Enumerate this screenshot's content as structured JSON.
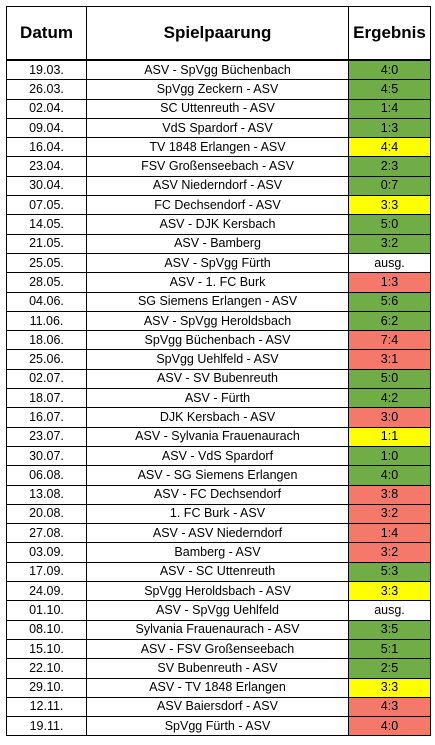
{
  "headers": {
    "date": "Datum",
    "match": "Spielpaarung",
    "result": "Ergebnis"
  },
  "colors": {
    "win": "#70ad47",
    "draw": "#ffff00",
    "loss": "#f4796b",
    "cancelled": "#ffffff"
  },
  "rows": [
    {
      "date": "19.03.",
      "match": "ASV - SpVgg Büchenbach",
      "result": "4:0",
      "outcome": "win"
    },
    {
      "date": "26.03.",
      "match": "SpVgg Zeckern - ASV",
      "result": "4:5",
      "outcome": "win"
    },
    {
      "date": "02.04.",
      "match": "SC Uttenreuth - ASV",
      "result": "1:4",
      "outcome": "win"
    },
    {
      "date": "09.04.",
      "match": "VdS Spardorf - ASV",
      "result": "1:3",
      "outcome": "win"
    },
    {
      "date": "16.04.",
      "match": "TV 1848 Erlangen - ASV",
      "result": "4:4",
      "outcome": "draw"
    },
    {
      "date": "23.04.",
      "match": "FSV Großenseebach - ASV",
      "result": "2:3",
      "outcome": "win"
    },
    {
      "date": "30.04.",
      "match": "ASV Niederndorf - ASV",
      "result": "0:7",
      "outcome": "win"
    },
    {
      "date": "07.05.",
      "match": "FC Dechsendorf - ASV",
      "result": "3:3",
      "outcome": "draw"
    },
    {
      "date": "14.05.",
      "match": "ASV - DJK Kersbach",
      "result": "5:0",
      "outcome": "win"
    },
    {
      "date": "21.05.",
      "match": "ASV - Bamberg",
      "result": "3:2",
      "outcome": "win"
    },
    {
      "date": "25.05.",
      "match": "ASV - SpVgg Fürth",
      "result": "ausg.",
      "outcome": "cancelled"
    },
    {
      "date": "28.05.",
      "match": "ASV - 1. FC Burk",
      "result": "1:3",
      "outcome": "loss"
    },
    {
      "date": "04.06.",
      "match": "SG Siemens Erlangen - ASV",
      "result": "5:6",
      "outcome": "win"
    },
    {
      "date": "11.06.",
      "match": "ASV - SpVgg Heroldsbach",
      "result": "6:2",
      "outcome": "win"
    },
    {
      "date": "18.06.",
      "match": "SpVgg Büchenbach - ASV",
      "result": "7:4",
      "outcome": "loss"
    },
    {
      "date": "25.06.",
      "match": "SpVgg Uehlfeld - ASV",
      "result": "3:1",
      "outcome": "loss"
    },
    {
      "date": "02.07.",
      "match": "ASV - SV Bubenreuth",
      "result": "5:0",
      "outcome": "win"
    },
    {
      "date": "18.07.",
      "match": "ASV - Fürth",
      "result": "4:2",
      "outcome": "win"
    },
    {
      "date": "16.07.",
      "match": "DJK Kersbach - ASV",
      "result": "3:0",
      "outcome": "loss"
    },
    {
      "date": "23.07.",
      "match": "ASV - Sylvania Frauenaurach",
      "result": "1:1",
      "outcome": "draw"
    },
    {
      "date": "30.07.",
      "match": "ASV - VdS Spardorf",
      "result": "1:0",
      "outcome": "win"
    },
    {
      "date": "06.08.",
      "match": "ASV - SG Siemens Erlangen",
      "result": "4:0",
      "outcome": "win"
    },
    {
      "date": "13.08.",
      "match": "ASV - FC Dechsendorf",
      "result": "3:8",
      "outcome": "loss"
    },
    {
      "date": "20.08.",
      "match": "1. FC Burk - ASV",
      "result": "3:2",
      "outcome": "loss"
    },
    {
      "date": "27.08.",
      "match": "ASV - ASV Niederndorf",
      "result": "1:4",
      "outcome": "loss"
    },
    {
      "date": "03.09.",
      "match": "Bamberg - ASV",
      "result": "3:2",
      "outcome": "loss"
    },
    {
      "date": "17.09.",
      "match": "ASV - SC Uttenreuth",
      "result": "5:3",
      "outcome": "win"
    },
    {
      "date": "24.09.",
      "match": "SpVgg Heroldsbach - ASV",
      "result": "3:3",
      "outcome": "draw"
    },
    {
      "date": "01.10.",
      "match": "ASV - SpVgg Uehlfeld",
      "result": "ausg.",
      "outcome": "cancelled"
    },
    {
      "date": "08.10.",
      "match": "Sylvania Frauenaurach - ASV",
      "result": "3:5",
      "outcome": "win"
    },
    {
      "date": "15.10.",
      "match": "ASV - FSV Großenseebach",
      "result": "5:1",
      "outcome": "win"
    },
    {
      "date": "22.10.",
      "match": "SV Bubenreuth - ASV",
      "result": "2:5",
      "outcome": "win"
    },
    {
      "date": "29.10.",
      "match": "ASV - TV 1848 Erlangen",
      "result": "3:3",
      "outcome": "draw"
    },
    {
      "date": "12.11.",
      "match": "ASV Baiersdorf - ASV",
      "result": "4:3",
      "outcome": "loss"
    },
    {
      "date": "19.11.",
      "match": "SpVgg Fürth - ASV",
      "result": "4:0",
      "outcome": "loss"
    }
  ]
}
